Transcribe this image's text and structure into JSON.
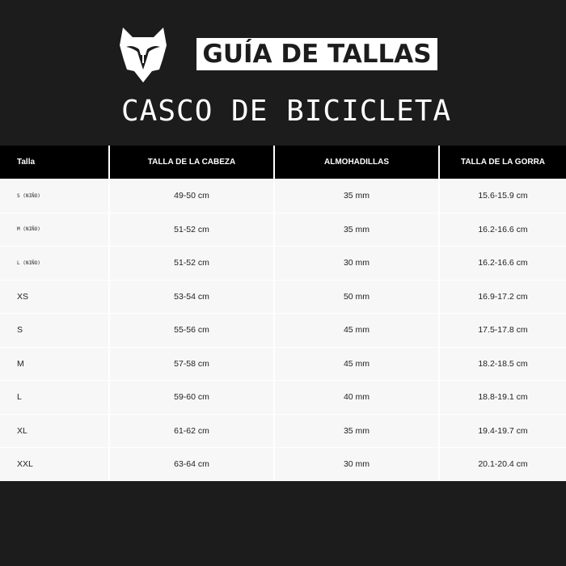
{
  "header": {
    "logo": "fox-head-logo",
    "badge": "GUÍA DE TALLAS",
    "subtitle": "CASCO DE BICICLETA"
  },
  "table": {
    "columns": [
      "Talla",
      "TALLA DE LA CABEZA",
      "ALMOHADILLAS",
      "TALLA DE LA GORRA"
    ],
    "rows": [
      {
        "size": "S (NIÑO)",
        "head": "49-50 cm",
        "pads": "35 mm",
        "cap": "15.6-15.9 cm",
        "kid": true
      },
      {
        "size": "M (NIÑO)",
        "head": "51-52 cm",
        "pads": "35 mm",
        "cap": "16.2-16.6 cm",
        "kid": true
      },
      {
        "size": "L (NIÑO)",
        "head": "51-52 cm",
        "pads": "30 mm",
        "cap": "16.2-16.6 cm",
        "kid": true
      },
      {
        "size": "XS",
        "head": "53-54 cm",
        "pads": "50 mm",
        "cap": "16.9-17.2 cm"
      },
      {
        "size": "S",
        "head": "55-56 cm",
        "pads": "45 mm",
        "cap": "17.5-17.8 cm"
      },
      {
        "size": "M",
        "head": "57-58 cm",
        "pads": "45 mm",
        "cap": "18.2-18.5 cm"
      },
      {
        "size": "L",
        "head": "59-60 cm",
        "pads": "40 mm",
        "cap": "18.8-19.1 cm"
      },
      {
        "size": "XL",
        "head": "61-62 cm",
        "pads": "35 mm",
        "cap": "19.4-19.7 cm"
      },
      {
        "size": "XXL",
        "head": "63-64 cm",
        "pads": "30 mm",
        "cap": "20.1-20.4 cm"
      }
    ]
  }
}
